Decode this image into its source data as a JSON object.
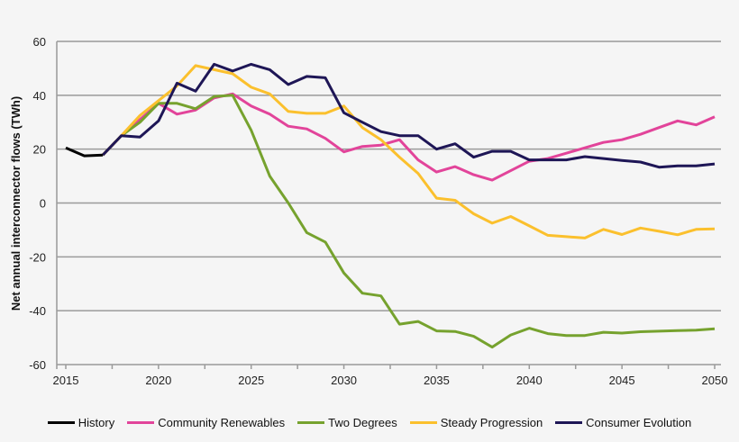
{
  "chart_data": {
    "type": "line",
    "title": "",
    "xlabel": "",
    "ylabel": "Net annual interconnector flows (TWh)",
    "xlim": [
      2015,
      2050
    ],
    "ylim": [
      -60,
      60
    ],
    "xticks": [
      2015,
      2020,
      2025,
      2030,
      2035,
      2040,
      2045,
      2050
    ],
    "yticks": [
      60,
      40,
      20,
      0,
      -20,
      -40,
      -60
    ],
    "grid": "horizontal",
    "legend_position": "bottom",
    "series": [
      {
        "name": "History",
        "color": "#000000",
        "x": [
          2015,
          2016,
          2017
        ],
        "values": [
          20.5,
          17.5,
          17.8
        ]
      },
      {
        "name": "Community Renewables",
        "color": "#e2449a",
        "x_start": 2017,
        "values": [
          17.8,
          25,
          31,
          37,
          33,
          34.5,
          39,
          40.5,
          36,
          33,
          28.5,
          27.5,
          24,
          19,
          21,
          21.5,
          23.5,
          16,
          11.5,
          13.5,
          10.5,
          8.5,
          12,
          15.5,
          16.5,
          18.5,
          20.5,
          22.5,
          23.5,
          25.5,
          28,
          30.5,
          29,
          32
        ]
      },
      {
        "name": "Two Degrees",
        "color": "#76a22e",
        "x_start": 2017,
        "values": [
          17.8,
          25,
          30,
          37,
          37,
          35,
          39.5,
          40,
          27,
          10,
          0,
          -11,
          -14.5,
          -26,
          -33.5,
          -34.5,
          -45,
          -44,
          -47.5,
          -47.7,
          -49.5,
          -53.5,
          -49,
          -46.5,
          -48.5,
          -49.2,
          -49.2,
          -48,
          -48.3,
          -47.8,
          -47.6,
          -47.4,
          -47.2,
          -46.7
        ]
      },
      {
        "name": "Steady Progression",
        "color": "#fbc02d",
        "x_start": 2017,
        "values": [
          17.8,
          25,
          32.5,
          38,
          43.5,
          51,
          49.5,
          48,
          43,
          40.5,
          34,
          33.3,
          33.3,
          36,
          28,
          23.5,
          17,
          11,
          1.8,
          1,
          -4,
          -7.5,
          -5,
          -8.5,
          -12,
          -12.5,
          -13,
          -9.8,
          -11.7,
          -9.3,
          -10.5,
          -11.8,
          -9.8,
          -9.6
        ]
      },
      {
        "name": "Consumer Evolution",
        "color": "#1e1656",
        "x_start": 2017,
        "values": [
          17.8,
          25,
          24.5,
          30.5,
          44.5,
          41.5,
          51.5,
          49,
          51.5,
          49.5,
          44,
          47,
          46.5,
          33.5,
          30,
          26.5,
          25,
          25,
          20,
          22,
          17,
          19.2,
          19.2,
          16,
          16,
          16,
          17.2,
          16.5,
          15.8,
          15.2,
          13.3,
          13.8,
          13.8,
          14.5
        ]
      }
    ]
  }
}
